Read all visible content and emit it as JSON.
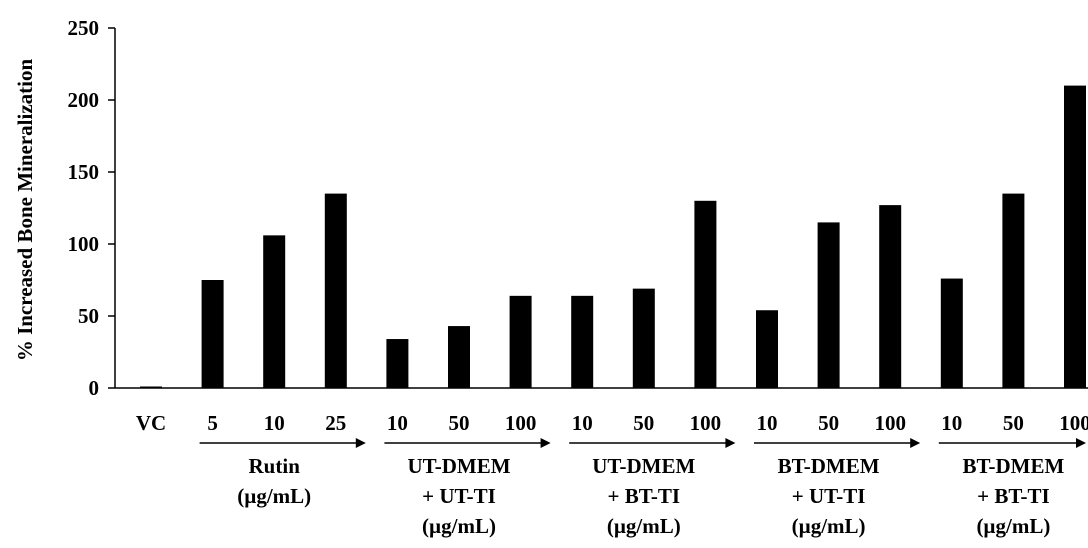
{
  "chart_data": {
    "type": "bar",
    "ylabel": "% Increased Bone Mineralization",
    "ylim": [
      0,
      250
    ],
    "yticks": [
      0,
      50,
      100,
      150,
      200,
      250
    ],
    "grid": false,
    "legend": "none",
    "bar_color": "#000000",
    "categories": [
      "VC",
      "5",
      "10",
      "25",
      "10",
      "50",
      "100",
      "10",
      "50",
      "100",
      "10",
      "50",
      "100",
      "10",
      "50",
      "100"
    ],
    "values": [
      1,
      75,
      106,
      135,
      34,
      43,
      64,
      64,
      69,
      130,
      54,
      115,
      127,
      76,
      135,
      210
    ],
    "groups": [
      {
        "label_lines": [
          "Rutin",
          "(µg/mL)"
        ],
        "start": 1,
        "end": 3
      },
      {
        "label_lines": [
          "UT-DMEM",
          "+ UT-TI",
          "(µg/mL)"
        ],
        "start": 4,
        "end": 6
      },
      {
        "label_lines": [
          "UT-DMEM",
          "+ BT-TI",
          "(µg/mL)"
        ],
        "start": 7,
        "end": 9
      },
      {
        "label_lines": [
          "BT-DMEM",
          "+ UT-TI",
          "(µg/mL)"
        ],
        "start": 10,
        "end": 12
      },
      {
        "label_lines": [
          "BT-DMEM",
          "+ BT-TI",
          "(µg/mL)"
        ],
        "start": 13,
        "end": 15
      }
    ]
  }
}
